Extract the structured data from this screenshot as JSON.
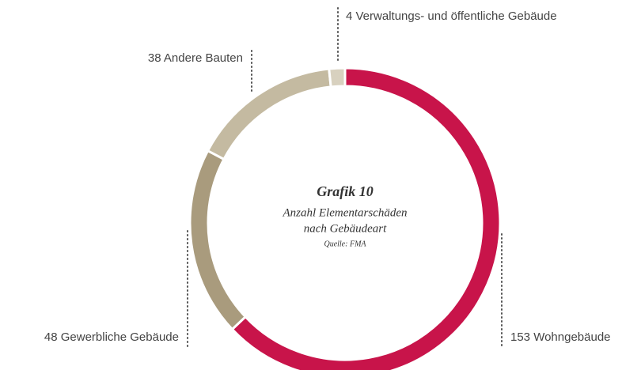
{
  "chart_data": {
    "type": "donut",
    "title": "Grafik 10",
    "subtitle": [
      "Anzahl Elementarschäden",
      "nach Gebäudeart"
    ],
    "source": "Quelle: FMA",
    "values": [
      153,
      48,
      38,
      4
    ],
    "value_labels": [
      "153 Wohngebäude",
      "48 Gewerbliche Gebäude",
      "38 Andere Bauten",
      "4 Verwaltungs- und öffentliche Gebäude"
    ],
    "colors": [
      "#c8144a",
      "#a99b7d",
      "#c4baa1",
      "#d8d1bf"
    ]
  }
}
